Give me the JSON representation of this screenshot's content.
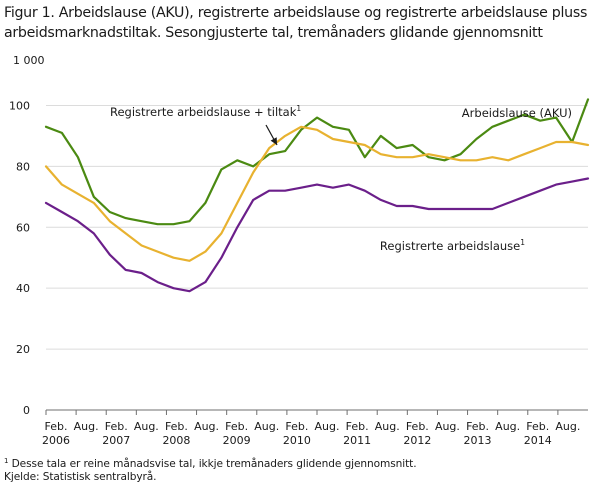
{
  "chart_data": {
    "type": "line",
    "title": "Figur 1. Arbeidslause (AKU), registrerte arbeidslause og registrerte arbeidslause pluss arbeidsmarknadstiltak. Sesongjusterte tal, tremånaders glidande gjennomsnitt",
    "unit_label": "1 000",
    "ylim": [
      0,
      110
    ],
    "yticks": [
      0,
      20,
      40,
      60,
      80,
      100
    ],
    "grid": true,
    "x_start": "2006-02",
    "x_end": "2014-08",
    "x_tick_labels": [
      {
        "month": "Feb.",
        "year": "2006"
      },
      {
        "month": "Aug.",
        "year": ""
      },
      {
        "month": "Feb.",
        "year": "2007"
      },
      {
        "month": "Aug.",
        "year": ""
      },
      {
        "month": "Feb.",
        "year": "2008"
      },
      {
        "month": "Aug.",
        "year": ""
      },
      {
        "month": "Feb.",
        "year": "2009"
      },
      {
        "month": "Aug.",
        "year": ""
      },
      {
        "month": "Feb.",
        "year": "2010"
      },
      {
        "month": "Aug.",
        "year": ""
      },
      {
        "month": "Feb.",
        "year": "2011"
      },
      {
        "month": "Aug.",
        "year": ""
      },
      {
        "month": "Feb.",
        "year": "2012"
      },
      {
        "month": "Aug.",
        "year": ""
      },
      {
        "month": "Feb.",
        "year": "2013"
      },
      {
        "month": "Aug.",
        "year": ""
      },
      {
        "month": "Feb.",
        "year": "2014"
      },
      {
        "month": "Aug.",
        "year": ""
      }
    ],
    "series": [
      {
        "name": "Arbeidslause (AKU)",
        "color": "#4b8a12",
        "x": [
          "2006-02",
          "2006-05",
          "2006-08",
          "2006-11",
          "2007-02",
          "2007-05",
          "2007-08",
          "2007-11",
          "2008-02",
          "2008-05",
          "2008-08",
          "2008-11",
          "2009-02",
          "2009-05",
          "2009-08",
          "2009-11",
          "2010-02",
          "2010-05",
          "2010-08",
          "2010-11",
          "2011-02",
          "2011-05",
          "2011-08",
          "2011-11",
          "2012-02",
          "2012-05",
          "2012-08",
          "2012-11",
          "2013-02",
          "2013-05",
          "2013-08",
          "2013-11",
          "2014-02",
          "2014-05",
          "2014-08"
        ],
        "values": [
          93,
          91,
          83,
          70,
          65,
          63,
          62,
          61,
          61,
          62,
          68,
          79,
          82,
          80,
          84,
          85,
          92,
          96,
          93,
          92,
          83,
          90,
          86,
          87,
          83,
          82,
          84,
          89,
          93,
          95,
          97,
          95,
          96,
          88,
          102
        ]
      },
      {
        "name": "Registrerte arbeidslause + tiltak",
        "footnote_marker": "1",
        "color": "#e8b230",
        "x": [
          "2006-02",
          "2006-05",
          "2006-08",
          "2006-11",
          "2007-02",
          "2007-05",
          "2007-08",
          "2007-11",
          "2008-02",
          "2008-05",
          "2008-08",
          "2008-11",
          "2009-02",
          "2009-05",
          "2009-08",
          "2009-11",
          "2010-02",
          "2010-05",
          "2010-08",
          "2010-11",
          "2011-02",
          "2011-05",
          "2011-08",
          "2011-11",
          "2012-02",
          "2012-05",
          "2012-08",
          "2012-11",
          "2013-02",
          "2013-05",
          "2013-08",
          "2013-11",
          "2014-02",
          "2014-05",
          "2014-08"
        ],
        "values": [
          80,
          74,
          71,
          68,
          62,
          58,
          54,
          52,
          50,
          49,
          52,
          58,
          68,
          78,
          86,
          90,
          93,
          92,
          89,
          88,
          87,
          84,
          83,
          83,
          84,
          83,
          82,
          82,
          83,
          82,
          84,
          86,
          88,
          88,
          87
        ]
      },
      {
        "name": "Registrerte arbeidslause",
        "footnote_marker": "1",
        "color": "#6b1f8a",
        "x": [
          "2006-02",
          "2006-05",
          "2006-08",
          "2006-11",
          "2007-02",
          "2007-05",
          "2007-08",
          "2007-11",
          "2008-02",
          "2008-05",
          "2008-08",
          "2008-11",
          "2009-02",
          "2009-05",
          "2009-08",
          "2009-11",
          "2010-02",
          "2010-05",
          "2010-08",
          "2010-11",
          "2011-02",
          "2011-05",
          "2011-08",
          "2011-11",
          "2012-02",
          "2012-05",
          "2012-08",
          "2012-11",
          "2013-02",
          "2013-05",
          "2013-08",
          "2013-11",
          "2014-02",
          "2014-05",
          "2014-08"
        ],
        "values": [
          68,
          65,
          62,
          58,
          51,
          46,
          45,
          42,
          40,
          39,
          42,
          50,
          60,
          69,
          72,
          72,
          73,
          74,
          73,
          74,
          72,
          69,
          67,
          67,
          66,
          66,
          66,
          66,
          66,
          68,
          70,
          72,
          74,
          75,
          76
        ]
      }
    ]
  },
  "labels": {
    "superscript_marker": "1"
  },
  "footnotes": {
    "marker": "1",
    "note": " Desse tala er reine månadsvise tal, ikkje tremånaders glidende gjennomsnitt.",
    "source": "Kjelde: Statistisk sentralbyrå."
  }
}
